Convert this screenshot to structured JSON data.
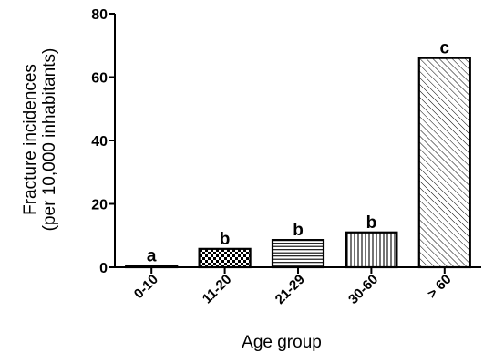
{
  "chart_data": {
    "type": "bar",
    "title": "",
    "xlabel": "Age group",
    "ylabel_line1": "Fracture  incidences",
    "ylabel_line2": "(per 10,000 inhabitants)",
    "categories": [
      "0-10",
      "11-20",
      "21-29",
      "30-60",
      "> 60"
    ],
    "values": [
      0.5,
      5.8,
      8.6,
      11.0,
      66.0
    ],
    "annotations": [
      "a",
      "b",
      "b",
      "b",
      "c"
    ],
    "patterns": [
      "solid",
      "checker",
      "horizontal",
      "vertical",
      "diagonal"
    ],
    "ylim": [
      0,
      80
    ],
    "yticks": [
      0,
      20,
      40,
      60,
      80
    ],
    "grid": false,
    "legend": "none"
  }
}
